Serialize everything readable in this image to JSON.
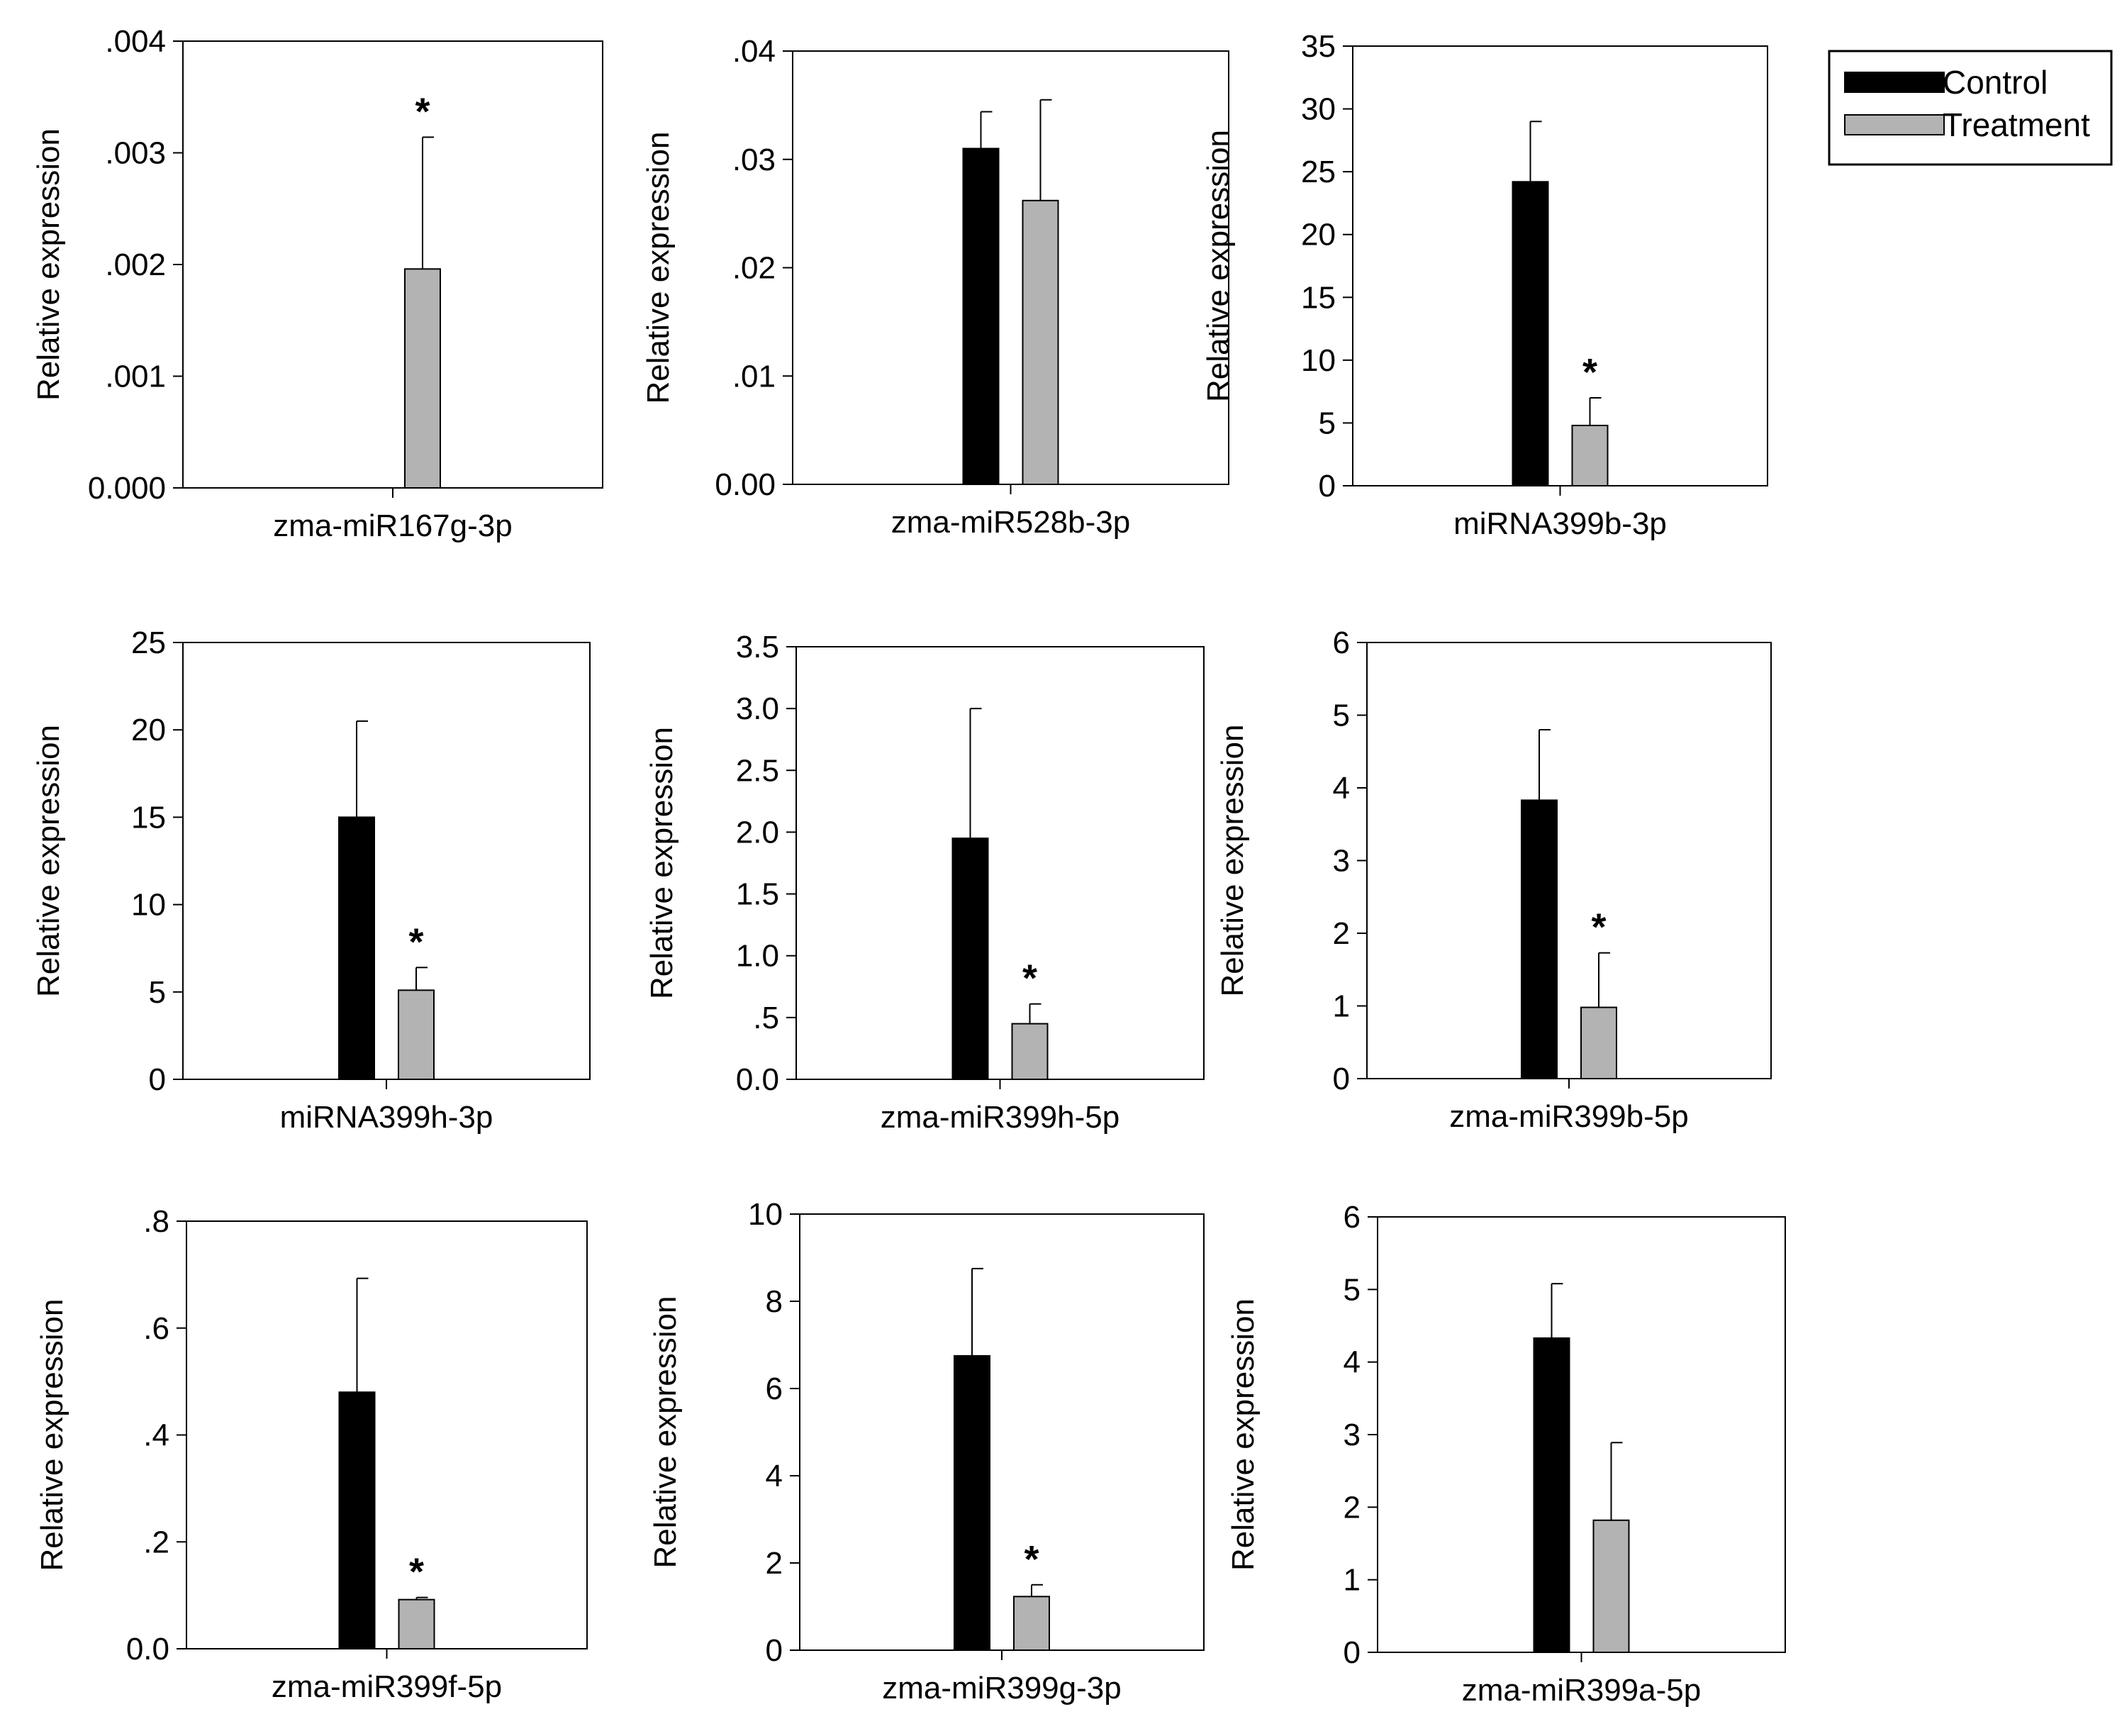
{
  "chart_data": [
    {
      "type": "bar",
      "title": "",
      "categories": [
        "zma-miR167g-3p"
      ],
      "xlabel": "zma-miR167g-3p",
      "ylabel": "Relative expression",
      "ylim": [
        0,
        0.004
      ],
      "yticks": [
        0,
        0.001,
        0.002,
        0.003,
        0.004
      ],
      "ytick_labels": [
        "0.000",
        ".001",
        ".002",
        ".003",
        ".004"
      ],
      "series": [
        {
          "name": "Control",
          "values": [
            0
          ],
          "errors": [
            0
          ],
          "significant": [
            false
          ]
        },
        {
          "name": "Treatment",
          "values": [
            0.00196
          ],
          "errors": [
            0.00118
          ],
          "significant": [
            true
          ]
        }
      ]
    },
    {
      "type": "bar",
      "title": "",
      "categories": [
        "zma-miR528b-3p"
      ],
      "xlabel": "zma-miR528b-3p",
      "ylabel": "Relative expression",
      "ylim": [
        0,
        0.04
      ],
      "yticks": [
        0,
        0.01,
        0.02,
        0.03,
        0.04
      ],
      "ytick_labels": [
        "0.00",
        ".01",
        ".02",
        ".03",
        ".04"
      ],
      "series": [
        {
          "name": "Control",
          "values": [
            0.031
          ],
          "errors": [
            0.0034
          ],
          "significant": [
            false
          ]
        },
        {
          "name": "Treatment",
          "values": [
            0.0262
          ],
          "errors": [
            0.0093
          ],
          "significant": [
            false
          ]
        }
      ]
    },
    {
      "type": "bar",
      "title": "",
      "categories": [
        "miRNA399b-3p"
      ],
      "xlabel": "miRNA399b-3p",
      "ylabel": "Relative expression",
      "ylim": [
        0,
        35
      ],
      "yticks": [
        0,
        5,
        10,
        15,
        20,
        25,
        30,
        35
      ],
      "ytick_labels": [
        "0",
        "5",
        "10",
        "15",
        "20",
        "25",
        "30",
        "35"
      ],
      "series": [
        {
          "name": "Control",
          "values": [
            24.2
          ],
          "errors": [
            4.8
          ],
          "significant": [
            false
          ]
        },
        {
          "name": "Treatment",
          "values": [
            4.8
          ],
          "errors": [
            2.2
          ],
          "significant": [
            true
          ]
        }
      ]
    },
    {
      "type": "bar",
      "title": "",
      "categories": [
        "miRNA399h-3p"
      ],
      "xlabel": "miRNA399h-3p",
      "ylabel": "Relative expression",
      "ylim": [
        0,
        25
      ],
      "yticks": [
        0,
        5,
        10,
        15,
        20,
        25
      ],
      "ytick_labels": [
        "0",
        "5",
        "10",
        "15",
        "20",
        "25"
      ],
      "series": [
        {
          "name": "Control",
          "values": [
            15.0
          ],
          "errors": [
            5.5
          ],
          "significant": [
            false
          ]
        },
        {
          "name": "Treatment",
          "values": [
            5.1
          ],
          "errors": [
            1.3
          ],
          "significant": [
            true
          ]
        }
      ]
    },
    {
      "type": "bar",
      "title": "",
      "categories": [
        "zma-miR399h-5p"
      ],
      "xlabel": "zma-miR399h-5p",
      "ylabel": "Relative expression",
      "ylim": [
        0,
        3.5
      ],
      "yticks": [
        0,
        0.5,
        1,
        1.5,
        2,
        2.5,
        3,
        3.5
      ],
      "ytick_labels": [
        "0.0",
        ".5",
        "1.0",
        "1.5",
        "2.0",
        "2.5",
        "3.0",
        "3.5"
      ],
      "series": [
        {
          "name": "Control",
          "values": [
            1.95
          ],
          "errors": [
            1.05
          ],
          "significant": [
            false
          ]
        },
        {
          "name": "Treatment",
          "values": [
            0.45
          ],
          "errors": [
            0.16
          ],
          "significant": [
            true
          ]
        }
      ]
    },
    {
      "type": "bar",
      "title": "",
      "categories": [
        "zma-miR399b-5p"
      ],
      "xlabel": "zma-miR399b-5p",
      "ylabel": "Relative expression",
      "ylim": [
        0,
        6
      ],
      "yticks": [
        0,
        1,
        2,
        3,
        4,
        5,
        6
      ],
      "ytick_labels": [
        "0",
        "1",
        "2",
        "3",
        "4",
        "5",
        "6"
      ],
      "series": [
        {
          "name": "Control",
          "values": [
            3.83
          ],
          "errors": [
            0.97
          ],
          "significant": [
            false
          ]
        },
        {
          "name": "Treatment",
          "values": [
            0.98
          ],
          "errors": [
            0.75
          ],
          "significant": [
            true
          ]
        }
      ]
    },
    {
      "type": "bar",
      "title": "",
      "categories": [
        "zma-miR399f-5p"
      ],
      "xlabel": "zma-miR399f-5p",
      "ylabel": "Relative expression",
      "ylim": [
        0,
        0.8
      ],
      "yticks": [
        0,
        0.2,
        0.4,
        0.6,
        0.8
      ],
      "ytick_labels": [
        "0.0",
        ".2",
        ".4",
        ".6",
        ".8"
      ],
      "series": [
        {
          "name": "Control",
          "values": [
            0.48
          ],
          "errors": [
            0.213
          ],
          "significant": [
            false
          ]
        },
        {
          "name": "Treatment",
          "values": [
            0.092
          ],
          "errors": [
            0.004
          ],
          "significant": [
            true
          ]
        }
      ]
    },
    {
      "type": "bar",
      "title": "",
      "categories": [
        "zma-miR399g-3p"
      ],
      "xlabel": "zma-miR399g-3p",
      "ylabel": "Relative expression",
      "ylim": [
        0,
        10
      ],
      "yticks": [
        0,
        2,
        4,
        6,
        8,
        10
      ],
      "ytick_labels": [
        "0",
        "2",
        "4",
        "6",
        "8",
        "10"
      ],
      "series": [
        {
          "name": "Control",
          "values": [
            6.75
          ],
          "errors": [
            2.0
          ],
          "significant": [
            false
          ]
        },
        {
          "name": "Treatment",
          "values": [
            1.23
          ],
          "errors": [
            0.27
          ],
          "significant": [
            true
          ]
        }
      ]
    },
    {
      "type": "bar",
      "title": "",
      "categories": [
        "zma-miR399a-5p"
      ],
      "xlabel": "zma-miR399a-5p",
      "ylabel": "Relative expression",
      "ylim": [
        0,
        6
      ],
      "yticks": [
        0,
        1,
        2,
        3,
        4,
        5,
        6
      ],
      "ytick_labels": [
        "0",
        "1",
        "2",
        "3",
        "4",
        "5",
        "6"
      ],
      "series": [
        {
          "name": "Control",
          "values": [
            4.33
          ],
          "errors": [
            0.75
          ],
          "significant": [
            false
          ]
        },
        {
          "name": "Treatment",
          "values": [
            1.82
          ],
          "errors": [
            1.07
          ],
          "significant": [
            false
          ]
        }
      ]
    }
  ],
  "legend": {
    "position": "top-right",
    "entries": [
      {
        "label": "Control",
        "color": "#000000"
      },
      {
        "label": "Treatment",
        "color": "#b3b3b3"
      }
    ]
  },
  "significance_marker": "*"
}
